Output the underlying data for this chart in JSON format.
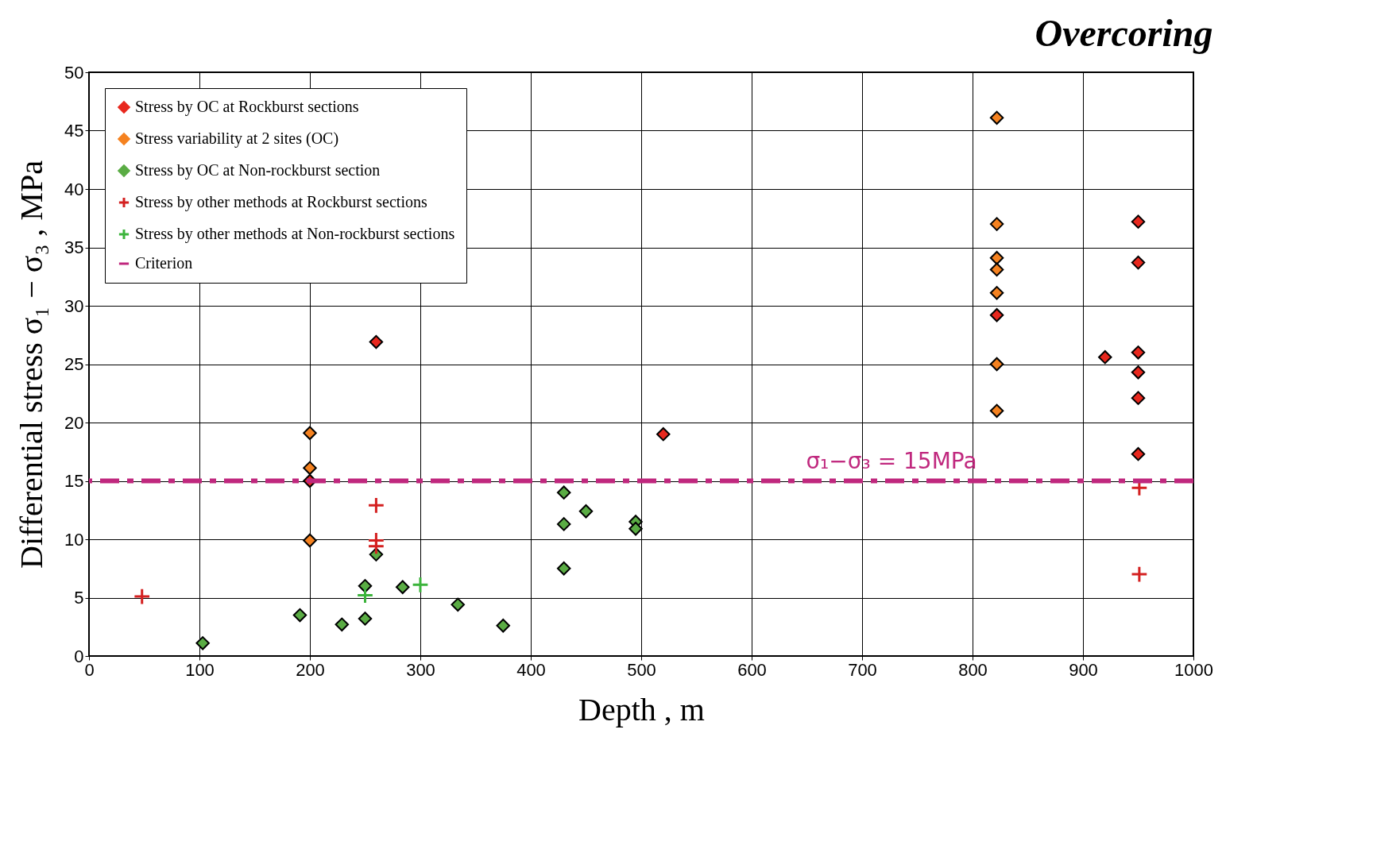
{
  "chart_data": {
    "type": "scatter",
    "title": "Overcoring",
    "xlabel": "Depth , m",
    "ylabel": "Differential stress σ₁ − σ₃ , MPa",
    "xlim": [
      0,
      1000
    ],
    "xticks": [
      0,
      100,
      200,
      300,
      400,
      500,
      600,
      700,
      800,
      900,
      1000
    ],
    "ylim": [
      0,
      50
    ],
    "yticks": [
      0,
      5,
      10,
      15,
      20,
      25,
      30,
      35,
      40,
      45,
      50
    ],
    "grid": true,
    "legend": "top left",
    "series": [
      {
        "name": "Stress by OC  at Rockburst sections",
        "color": "#e8281e",
        "marker": "diamond",
        "x": [
          200,
          260,
          520,
          822,
          920,
          950,
          950,
          950,
          950,
          950,
          950
        ],
        "values": [
          15,
          26.9,
          19.0,
          29.2,
          25.6,
          37.2,
          33.7,
          26.0,
          24.3,
          22.1,
          17.3
        ]
      },
      {
        "name": "Stress variability at 2 sites (OC)",
        "color": "#f58220",
        "marker": "diamond",
        "x": [
          200,
          200,
          200,
          822,
          822,
          822,
          822,
          822,
          822,
          822
        ],
        "values": [
          19.1,
          16.1,
          9.9,
          46.1,
          37.0,
          34.1,
          33.1,
          31.1,
          25.0,
          21.0
        ]
      },
      {
        "name": "Stress by OC at Non-rockburst section",
        "color": "#5aac44",
        "marker": "diamond",
        "x": [
          103,
          191,
          229,
          250,
          250,
          260,
          284,
          334,
          375,
          430,
          430,
          430,
          450,
          495,
          495
        ],
        "values": [
          1.1,
          3.5,
          2.7,
          3.2,
          6.0,
          8.7,
          5.9,
          4.4,
          2.6,
          14.0,
          11.3,
          7.5,
          12.4,
          11.5,
          10.9
        ]
      },
      {
        "name": "Stress by other methods at Rockburst sections",
        "color": "#d42020",
        "marker": "cross",
        "x": [
          48,
          260,
          260,
          260,
          951,
          951
        ],
        "values": [
          5.1,
          12.9,
          9.9,
          9.4,
          14.4,
          7.0
        ]
      },
      {
        "name": "Stress by other methods at Non-rockburst sections",
        "color": "#3cb43c",
        "marker": "cross",
        "x": [
          250,
          300
        ],
        "values": [
          5.2,
          6.1
        ]
      }
    ],
    "ref_lines": [
      {
        "axis": "y",
        "value": 15,
        "label": "Criterion",
        "color": "#c0287e",
        "line_style": "dashed"
      }
    ],
    "annotations": [
      "σ₁−σ₃ = 15MPa"
    ]
  }
}
